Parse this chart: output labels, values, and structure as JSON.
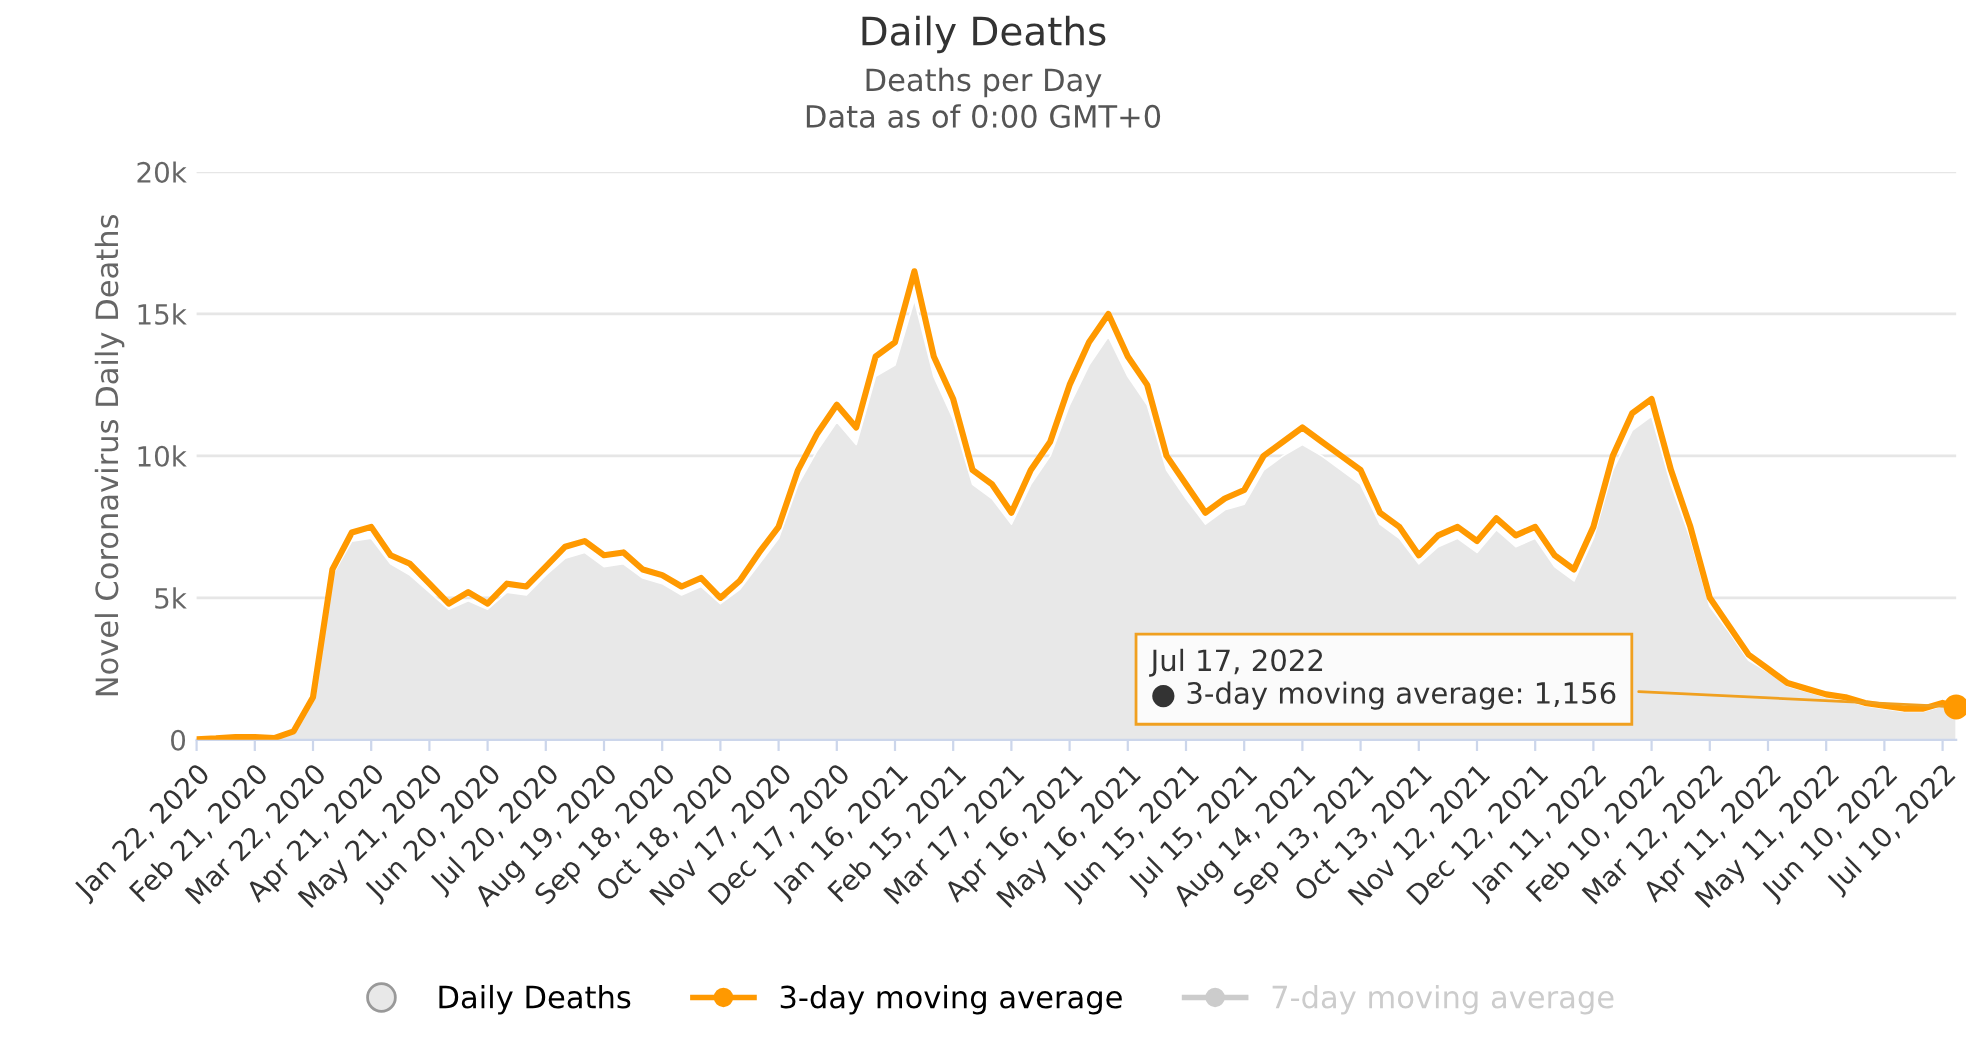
{
  "chart_data": {
    "type": "line",
    "title": "Daily Deaths",
    "subtitle": "Deaths per Day\nData as of 0:00 GMT+0",
    "ylabel": "Novel Coronavirus Daily Deaths",
    "x": [
      "2020-01-22",
      "2020-02-01",
      "2020-02-11",
      "2020-02-21",
      "2020-03-02",
      "2020-03-12",
      "2020-03-22",
      "2020-04-01",
      "2020-04-11",
      "2020-04-21",
      "2020-05-01",
      "2020-05-11",
      "2020-05-21",
      "2020-05-31",
      "2020-06-10",
      "2020-06-20",
      "2020-06-30",
      "2020-07-10",
      "2020-07-20",
      "2020-07-30",
      "2020-08-09",
      "2020-08-19",
      "2020-08-29",
      "2020-09-08",
      "2020-09-18",
      "2020-09-28",
      "2020-10-08",
      "2020-10-18",
      "2020-10-28",
      "2020-11-07",
      "2020-11-17",
      "2020-11-27",
      "2020-12-07",
      "2020-12-17",
      "2020-12-27",
      "2021-01-06",
      "2021-01-16",
      "2021-01-26",
      "2021-02-05",
      "2021-02-15",
      "2021-02-25",
      "2021-03-07",
      "2021-03-17",
      "2021-03-27",
      "2021-04-06",
      "2021-04-16",
      "2021-04-26",
      "2021-05-06",
      "2021-05-16",
      "2021-05-26",
      "2021-06-05",
      "2021-06-15",
      "2021-06-25",
      "2021-07-05",
      "2021-07-15",
      "2021-07-25",
      "2021-08-04",
      "2021-08-14",
      "2021-08-24",
      "2021-09-03",
      "2021-09-13",
      "2021-09-23",
      "2021-10-03",
      "2021-10-13",
      "2021-10-23",
      "2021-11-02",
      "2021-11-12",
      "2021-11-22",
      "2021-12-02",
      "2021-12-12",
      "2021-12-22",
      "2022-01-01",
      "2022-01-11",
      "2022-01-21",
      "2022-01-31",
      "2022-02-10",
      "2022-02-20",
      "2022-03-02",
      "2022-03-12",
      "2022-03-22",
      "2022-04-01",
      "2022-04-11",
      "2022-04-21",
      "2022-05-01",
      "2022-05-11",
      "2022-05-21",
      "2022-05-31",
      "2022-06-10",
      "2022-06-20",
      "2022-06-30",
      "2022-07-10",
      "2022-07-17"
    ],
    "series": [
      {
        "name": "Daily Deaths",
        "type": "area",
        "color": "#e8e8e8",
        "values": [
          20,
          50,
          100,
          100,
          60,
          300,
          1400,
          5800,
          7000,
          7100,
          6200,
          5800,
          5200,
          4600,
          4900,
          4600,
          5200,
          5100,
          5800,
          6400,
          6600,
          6100,
          6200,
          5700,
          5500,
          5100,
          5400,
          4800,
          5300,
          6200,
          7100,
          9000,
          10200,
          11200,
          10400,
          12800,
          13200,
          15500,
          12800,
          11300,
          9000,
          8500,
          7600,
          9000,
          10000,
          11800,
          13200,
          14200,
          12800,
          11800,
          9500,
          8500,
          7600,
          8100,
          8300,
          9500,
          10000,
          10400,
          10000,
          9500,
          9000,
          7600,
          7100,
          6200,
          6800,
          7100,
          6600,
          7400,
          6800,
          7100,
          6100,
          5600,
          7100,
          9500,
          10900,
          11400,
          9000,
          7100,
          4700,
          3800,
          2800,
          2400,
          1900,
          1700,
          1500,
          1400,
          1200,
          1100,
          1000,
          1000,
          1200,
          1100
        ]
      },
      {
        "name": "3-day moving average",
        "color": "#ff9900",
        "values": [
          20,
          50,
          100,
          100,
          60,
          300,
          1500,
          6000,
          7300,
          7500,
          6500,
          6200,
          5500,
          4800,
          5200,
          4800,
          5500,
          5400,
          6100,
          6800,
          7000,
          6500,
          6600,
          6000,
          5800,
          5400,
          5700,
          5000,
          5600,
          6600,
          7500,
          9500,
          10800,
          11800,
          11000,
          13500,
          14000,
          16500,
          13500,
          12000,
          9500,
          9000,
          8000,
          9500,
          10500,
          12500,
          14000,
          15000,
          13500,
          12500,
          10000,
          9000,
          8000,
          8500,
          8800,
          10000,
          10500,
          11000,
          10500,
          10000,
          9500,
          8000,
          7500,
          6500,
          7200,
          7500,
          7000,
          7800,
          7200,
          7500,
          6500,
          6000,
          7500,
          10000,
          11500,
          12000,
          9500,
          7500,
          5000,
          4000,
          3000,
          2500,
          2000,
          1800,
          1600,
          1500,
          1300,
          1200,
          1100,
          1100,
          1300,
          1156
        ]
      },
      {
        "name": "7-day moving average",
        "color": "#cccccc",
        "values": [
          null,
          null,
          null,
          null,
          null,
          null,
          null,
          null,
          null,
          null,
          null,
          null,
          null,
          null,
          null,
          null,
          null,
          null,
          null,
          null,
          null,
          null,
          null,
          null,
          null,
          null,
          null,
          null,
          null,
          null,
          null,
          null,
          null,
          null,
          null,
          null,
          null,
          null,
          null,
          null,
          null,
          null,
          null,
          null,
          null,
          null,
          null,
          null,
          null,
          null,
          null,
          null,
          null,
          null,
          null,
          null,
          null,
          null,
          null,
          null,
          null,
          null,
          null,
          null,
          null,
          null,
          null,
          null,
          null,
          null,
          null,
          null,
          null,
          null,
          null,
          null,
          null,
          null,
          null,
          null,
          null,
          null,
          null,
          null,
          null,
          null,
          null,
          null,
          null,
          null,
          null,
          null
        ]
      }
    ],
    "xlim": [
      "2020-01-22",
      "2022-07-17"
    ],
    "xticks": [
      {
        "value": "2020-01-22",
        "label": "Jan 22, 2020"
      },
      {
        "value": "2020-02-21",
        "label": "Feb 21, 2020"
      },
      {
        "value": "2020-03-22",
        "label": "Mar 22, 2020"
      },
      {
        "value": "2020-04-21",
        "label": "Apr 21, 2020"
      },
      {
        "value": "2020-05-21",
        "label": "May 21, 2020"
      },
      {
        "value": "2020-06-20",
        "label": "Jun 20, 2020"
      },
      {
        "value": "2020-07-20",
        "label": "Jul 20, 2020"
      },
      {
        "value": "2020-08-19",
        "label": "Aug 19, 2020"
      },
      {
        "value": "2020-09-18",
        "label": "Sep 18, 2020"
      },
      {
        "value": "2020-10-18",
        "label": "Oct 18, 2020"
      },
      {
        "value": "2020-11-17",
        "label": "Nov 17, 2020"
      },
      {
        "value": "2020-12-17",
        "label": "Dec 17, 2020"
      },
      {
        "value": "2021-01-16",
        "label": "Jan 16, 2021"
      },
      {
        "value": "2021-02-15",
        "label": "Feb 15, 2021"
      },
      {
        "value": "2021-03-17",
        "label": "Mar 17, 2021"
      },
      {
        "value": "2021-04-16",
        "label": "Apr 16, 2021"
      },
      {
        "value": "2021-05-16",
        "label": "May 16, 2021"
      },
      {
        "value": "2021-06-15",
        "label": "Jun 15, 2021"
      },
      {
        "value": "2021-07-15",
        "label": "Jul 15, 2021"
      },
      {
        "value": "2021-08-14",
        "label": "Aug 14, 2021"
      },
      {
        "value": "2021-09-13",
        "label": "Sep 13, 2021"
      },
      {
        "value": "2021-10-13",
        "label": "Oct 13, 2021"
      },
      {
        "value": "2021-11-12",
        "label": "Nov 12, 2021"
      },
      {
        "value": "2021-12-12",
        "label": "Dec 12, 2021"
      },
      {
        "value": "2022-01-11",
        "label": "Jan 11, 2022"
      },
      {
        "value": "2022-02-10",
        "label": "Feb 10, 2022"
      },
      {
        "value": "2022-03-12",
        "label": "Mar 12, 2022"
      },
      {
        "value": "2022-04-11",
        "label": "Apr 11, 2022"
      },
      {
        "value": "2022-05-11",
        "label": "May 11, 2022"
      },
      {
        "value": "2022-06-10",
        "label": "Jun 10, 2022"
      },
      {
        "value": "2022-07-10",
        "label": "Jul 10, 2022"
      }
    ],
    "ylim": [
      0,
      20000
    ],
    "yticks": [
      {
        "value": 0,
        "label": "0"
      },
      {
        "value": 5000,
        "label": "5k"
      },
      {
        "value": 10000,
        "label": "10k"
      },
      {
        "value": 15000,
        "label": "15k"
      },
      {
        "value": 20000,
        "label": "20k"
      }
    ],
    "grid": "y",
    "legend": "bottom",
    "annotations": [
      {
        "text": "Jul 17, 2022\n● 3-day moving average: 1,156",
        "x": "2022-07-17",
        "y": 1156
      }
    ]
  }
}
